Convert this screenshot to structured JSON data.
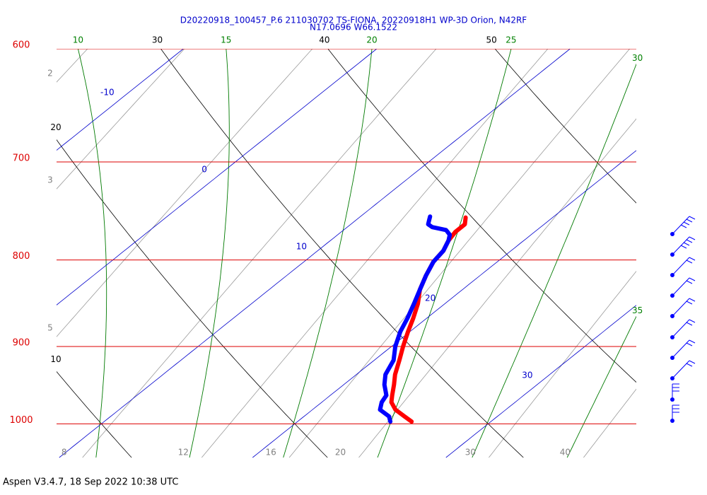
{
  "chart_data": {
    "type": "skew-t",
    "title": "D20220918_100457_P.6 211030702 TS-FIONA, 20220918H1 WP-3D Orion, N42RF",
    "subtitle": "N17.0696 W66.1522",
    "footer": "Aspen V3.4.7, 18 Sep 2022  10:38 UTC",
    "y_scale": "log",
    "ylim": [
      600,
      1050
    ],
    "yticks": [
      600,
      700,
      800,
      900,
      1000
    ],
    "isotherms": [
      -10,
      0,
      10,
      20,
      30
    ],
    "dry_adiabats": [
      10,
      20,
      30,
      40,
      50
    ],
    "moist_adiabats": [
      10,
      15,
      20,
      25,
      30,
      35
    ],
    "mixing_ratios": [
      2,
      3,
      5,
      8,
      12,
      16,
      20,
      30,
      40
    ],
    "series": [
      {
        "color": "#ff0000",
        "pressure": [
          997,
          990,
          981,
          971,
          962,
          948,
          935,
          917,
          900,
          882,
          866,
          849,
          833,
          817,
          802,
          790,
          779,
          770,
          762,
          755
        ],
        "values": [
          25.9,
          25.2,
          24.3,
          23.6,
          23.2,
          22.6,
          22.0,
          21.3,
          20.6,
          19.9,
          19.3,
          18.6,
          17.8,
          17.2,
          16.7,
          16.5,
          16.1,
          15.9,
          15.9,
          15.5
        ]
      },
      {
        "color": "#0000ff",
        "pressure": [
          997,
          990,
          981,
          971,
          962,
          948,
          935,
          917,
          900,
          882,
          866,
          849,
          833,
          817,
          802,
          790,
          779,
          773,
          768,
          765,
          762,
          758,
          754
        ],
        "values": [
          24.8,
          24.4,
          23.5,
          23.1,
          22.9,
          22.1,
          21.5,
          21.0,
          20.2,
          19.5,
          19.0,
          18.4,
          17.8,
          17.2,
          16.7,
          16.5,
          16.1,
          15.8,
          15.3,
          14.4,
          14.0,
          13.8,
          13.6
        ]
      }
    ]
  }
}
